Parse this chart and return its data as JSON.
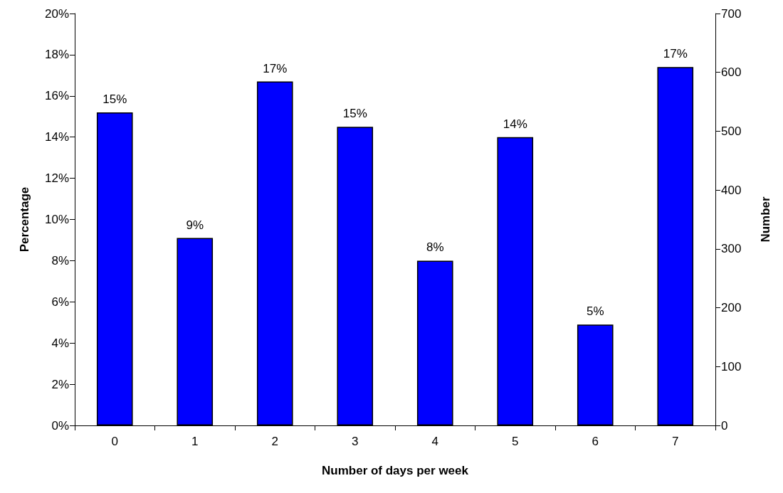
{
  "chart_data": {
    "type": "bar",
    "xlabel": "Number of days per week",
    "ylabel": "Percentage",
    "y2label": "Number",
    "categories": [
      "0",
      "1",
      "2",
      "3",
      "4",
      "5",
      "6",
      "7"
    ],
    "series": [
      {
        "color": "#0000ff",
        "values": [
          15.2,
          9.1,
          16.7,
          14.5,
          8.0,
          14.0,
          4.9,
          17.4
        ],
        "value_labels": [
          "15%",
          "9%",
          "17%",
          "15%",
          "8%",
          "14%",
          "5%",
          "17%"
        ]
      }
    ],
    "ylim": [
      0,
      20
    ],
    "yticks": [
      {
        "value": 0,
        "label": "0%"
      },
      {
        "value": 2,
        "label": "2%"
      },
      {
        "value": 4,
        "label": "4%"
      },
      {
        "value": 6,
        "label": "6%"
      },
      {
        "value": 8,
        "label": "8%"
      },
      {
        "value": 10,
        "label": "10%"
      },
      {
        "value": 12,
        "label": "12%"
      },
      {
        "value": 14,
        "label": "14%"
      },
      {
        "value": 16,
        "label": "16%"
      },
      {
        "value": 18,
        "label": "18%"
      },
      {
        "value": 20,
        "label": "20%"
      }
    ],
    "y2lim": [
      0,
      700
    ],
    "y2ticks": [
      0,
      100,
      200,
      300,
      400,
      500,
      600,
      700
    ]
  }
}
